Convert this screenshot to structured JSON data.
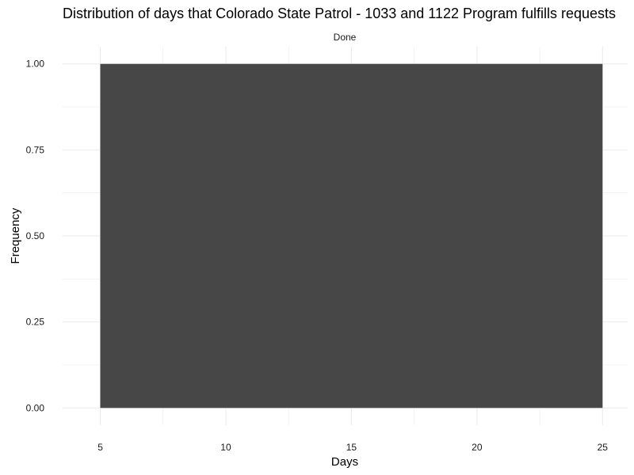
{
  "chart_data": {
    "type": "bar",
    "title": "Distribution of days that Colorado State Patrol - 1033 and 1122 Program fulfills requests",
    "facet_label": "Done",
    "xlabel": "Days",
    "ylabel": "Frequency",
    "xlim": [
      3.5,
      26.0
    ],
    "ylim": [
      -0.05,
      1.05
    ],
    "x_ticks": [
      5,
      10,
      15,
      20,
      25
    ],
    "y_ticks": [
      0.0,
      0.25,
      0.5,
      0.75,
      1.0
    ],
    "y_tick_labels": [
      "0.00",
      "0.25",
      "0.50",
      "0.75",
      "1.00"
    ],
    "bins": [
      {
        "x_start": 5,
        "x_end": 25,
        "value": 1
      }
    ],
    "bar_color": "#474747",
    "grid": true,
    "grid_color": "#ebebeb"
  }
}
